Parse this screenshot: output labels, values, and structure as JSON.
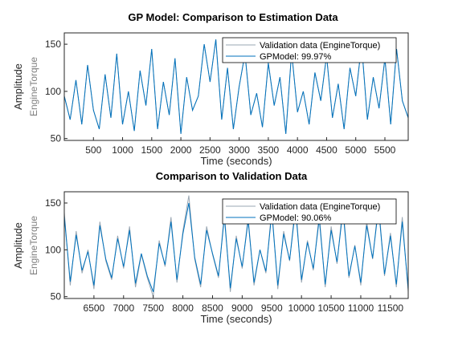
{
  "window": {
    "title": "GP Model: Comparison to Estimation Data"
  },
  "colors": {
    "validation": "#9aa7b3",
    "model": "#0072BD",
    "axes": "#262626",
    "legend_border": "#000000"
  },
  "chart_data": [
    {
      "type": "line",
      "title": "GP Model: Comparison to Estimation Data",
      "xlabel": "Time (seconds)",
      "ylabel": "Amplitude",
      "channel_label": "EngineTorque",
      "xlim": [
        0,
        5900
      ],
      "ylim": [
        48,
        162
      ],
      "xticks": [
        500,
        1000,
        1500,
        2000,
        2500,
        3000,
        3500,
        4000,
        4500,
        5000,
        5500
      ],
      "xtick_labels": [
        "500",
        "1000",
        "1500",
        "2000",
        "2500",
        "3000",
        "3500",
        "4000",
        "4500",
        "5000",
        "5500"
      ],
      "yticks": [
        50,
        100,
        150
      ],
      "ytick_labels": [
        "50",
        "100",
        "150"
      ],
      "grid": false,
      "legend_position": "top-right",
      "legend": [
        "Validation data (EngineTorque)",
        "GPModel: 99.97%"
      ],
      "series": [
        {
          "name": "Validation data (EngineTorque)",
          "x": [
            0,
            100,
            200,
            300,
            400,
            500,
            600,
            700,
            800,
            900,
            1000,
            1100,
            1200,
            1300,
            1400,
            1500,
            1600,
            1700,
            1800,
            1900,
            2000,
            2100,
            2200,
            2300,
            2400,
            2500,
            2600,
            2700,
            2800,
            2900,
            3000,
            3100,
            3200,
            3300,
            3400,
            3500,
            3600,
            3700,
            3800,
            3900,
            4000,
            4100,
            4200,
            4300,
            4400,
            4500,
            4600,
            4700,
            4800,
            4900,
            5000,
            5100,
            5200,
            5300,
            5400,
            5500,
            5600,
            5700,
            5800,
            5900
          ],
          "y": [
            95,
            70,
            112,
            65,
            128,
            80,
            60,
            118,
            72,
            140,
            65,
            100,
            58,
            122,
            85,
            145,
            60,
            110,
            75,
            135,
            55,
            115,
            80,
            95,
            150,
            110,
            155,
            70,
            125,
            60,
            105,
            140,
            75,
            98,
            62,
            130,
            85,
            115,
            55,
            142,
            78,
            100,
            65,
            120,
            90,
            138,
            72,
            108,
            60,
            125,
            95,
            150,
            70,
            115,
            82,
            135,
            65,
            145,
            90,
            72
          ]
        },
        {
          "name": "GPModel: 99.97%",
          "x": [
            0,
            100,
            200,
            300,
            400,
            500,
            600,
            700,
            800,
            900,
            1000,
            1100,
            1200,
            1300,
            1400,
            1500,
            1600,
            1700,
            1800,
            1900,
            2000,
            2100,
            2200,
            2300,
            2400,
            2500,
            2600,
            2700,
            2800,
            2900,
            3000,
            3100,
            3200,
            3300,
            3400,
            3500,
            3600,
            3700,
            3800,
            3900,
            4000,
            4100,
            4200,
            4300,
            4400,
            4500,
            4600,
            4700,
            4800,
            4900,
            5000,
            5100,
            5200,
            5300,
            5400,
            5500,
            5600,
            5700,
            5800,
            5900
          ],
          "y": [
            95,
            70,
            112,
            65,
            128,
            80,
            60,
            118,
            72,
            140,
            65,
            100,
            58,
            122,
            85,
            145,
            60,
            110,
            75,
            135,
            55,
            115,
            80,
            95,
            150,
            110,
            155,
            70,
            125,
            60,
            105,
            140,
            75,
            98,
            62,
            130,
            85,
            115,
            55,
            142,
            78,
            100,
            65,
            120,
            90,
            138,
            72,
            108,
            60,
            125,
            95,
            150,
            70,
            115,
            82,
            135,
            65,
            145,
            90,
            72
          ]
        }
      ]
    },
    {
      "type": "line",
      "title": "Comparison to Validation Data",
      "xlabel": "Time (seconds)",
      "ylabel": "Amplitude",
      "channel_label": "EngineTorque",
      "xlim": [
        6000,
        11800
      ],
      "ylim": [
        48,
        162
      ],
      "xticks": [
        6500,
        7000,
        7500,
        8000,
        8500,
        9000,
        9500,
        10000,
        10500,
        11000,
        11500
      ],
      "xtick_labels": [
        "6500",
        "7000",
        "7500",
        "8000",
        "8500",
        "9000",
        "9500",
        "10000",
        "10500",
        "11000",
        "11500"
      ],
      "yticks": [
        50,
        100,
        150
      ],
      "ytick_labels": [
        "50",
        "100",
        "150"
      ],
      "grid": false,
      "legend_position": "top-right",
      "legend": [
        "Validation data (EngineTorque)",
        "GPModel: 90.06%"
      ],
      "series": [
        {
          "name": "Validation data (EngineTorque)",
          "x": [
            6000,
            6100,
            6200,
            6300,
            6400,
            6500,
            6600,
            6700,
            6800,
            6900,
            7000,
            7100,
            7200,
            7300,
            7400,
            7500,
            7600,
            7700,
            7800,
            7900,
            8000,
            8100,
            8200,
            8300,
            8400,
            8500,
            8600,
            8700,
            8800,
            8900,
            9000,
            9100,
            9200,
            9300,
            9400,
            9500,
            9600,
            9700,
            9800,
            9900,
            10000,
            10100,
            10200,
            10300,
            10400,
            10500,
            10600,
            10700,
            10800,
            10900,
            11000,
            11100,
            11200,
            11300,
            11400,
            11500,
            11600,
            11700,
            11800
          ],
          "y": [
            140,
            62,
            120,
            75,
            100,
            58,
            130,
            88,
            68,
            115,
            80,
            125,
            60,
            95,
            70,
            50,
            110,
            82,
            135,
            65,
            120,
            158,
            90,
            60,
            125,
            95,
            70,
            140,
            55,
            115,
            80,
            135,
            62,
            100,
            75,
            145,
            58,
            120,
            88,
            150,
            65,
            110,
            78,
            138,
            60,
            125,
            85,
            148,
            70,
            105,
            62,
            130,
            90,
            150,
            72,
            118,
            60,
            135,
            55
          ]
        },
        {
          "name": "GPModel: 90.06%",
          "x": [
            6000,
            6100,
            6200,
            6300,
            6400,
            6500,
            6600,
            6700,
            6800,
            6900,
            7000,
            7100,
            7200,
            7300,
            7400,
            7500,
            7600,
            7700,
            7800,
            7900,
            8000,
            8100,
            8200,
            8300,
            8400,
            8500,
            8600,
            8700,
            8800,
            8900,
            9000,
            9100,
            9200,
            9300,
            9400,
            9500,
            9600,
            9700,
            9800,
            9900,
            10000,
            10100,
            10200,
            10300,
            10400,
            10500,
            10600,
            10700,
            10800,
            10900,
            11000,
            11100,
            11200,
            11300,
            11400,
            11500,
            11600,
            11700,
            11800
          ],
          "y": [
            136,
            66,
            116,
            78,
            98,
            62,
            126,
            90,
            70,
            112,
            82,
            121,
            64,
            96,
            72,
            55,
            107,
            84,
            130,
            68,
            117,
            150,
            92,
            63,
            121,
            96,
            72,
            135,
            59,
            112,
            82,
            131,
            65,
            100,
            77,
            140,
            62,
            117,
            89,
            144,
            68,
            108,
            80,
            133,
            63,
            121,
            87,
            142,
            72,
            104,
            65,
            126,
            91,
            145,
            74,
            115,
            63,
            130,
            58
          ]
        }
      ]
    }
  ]
}
